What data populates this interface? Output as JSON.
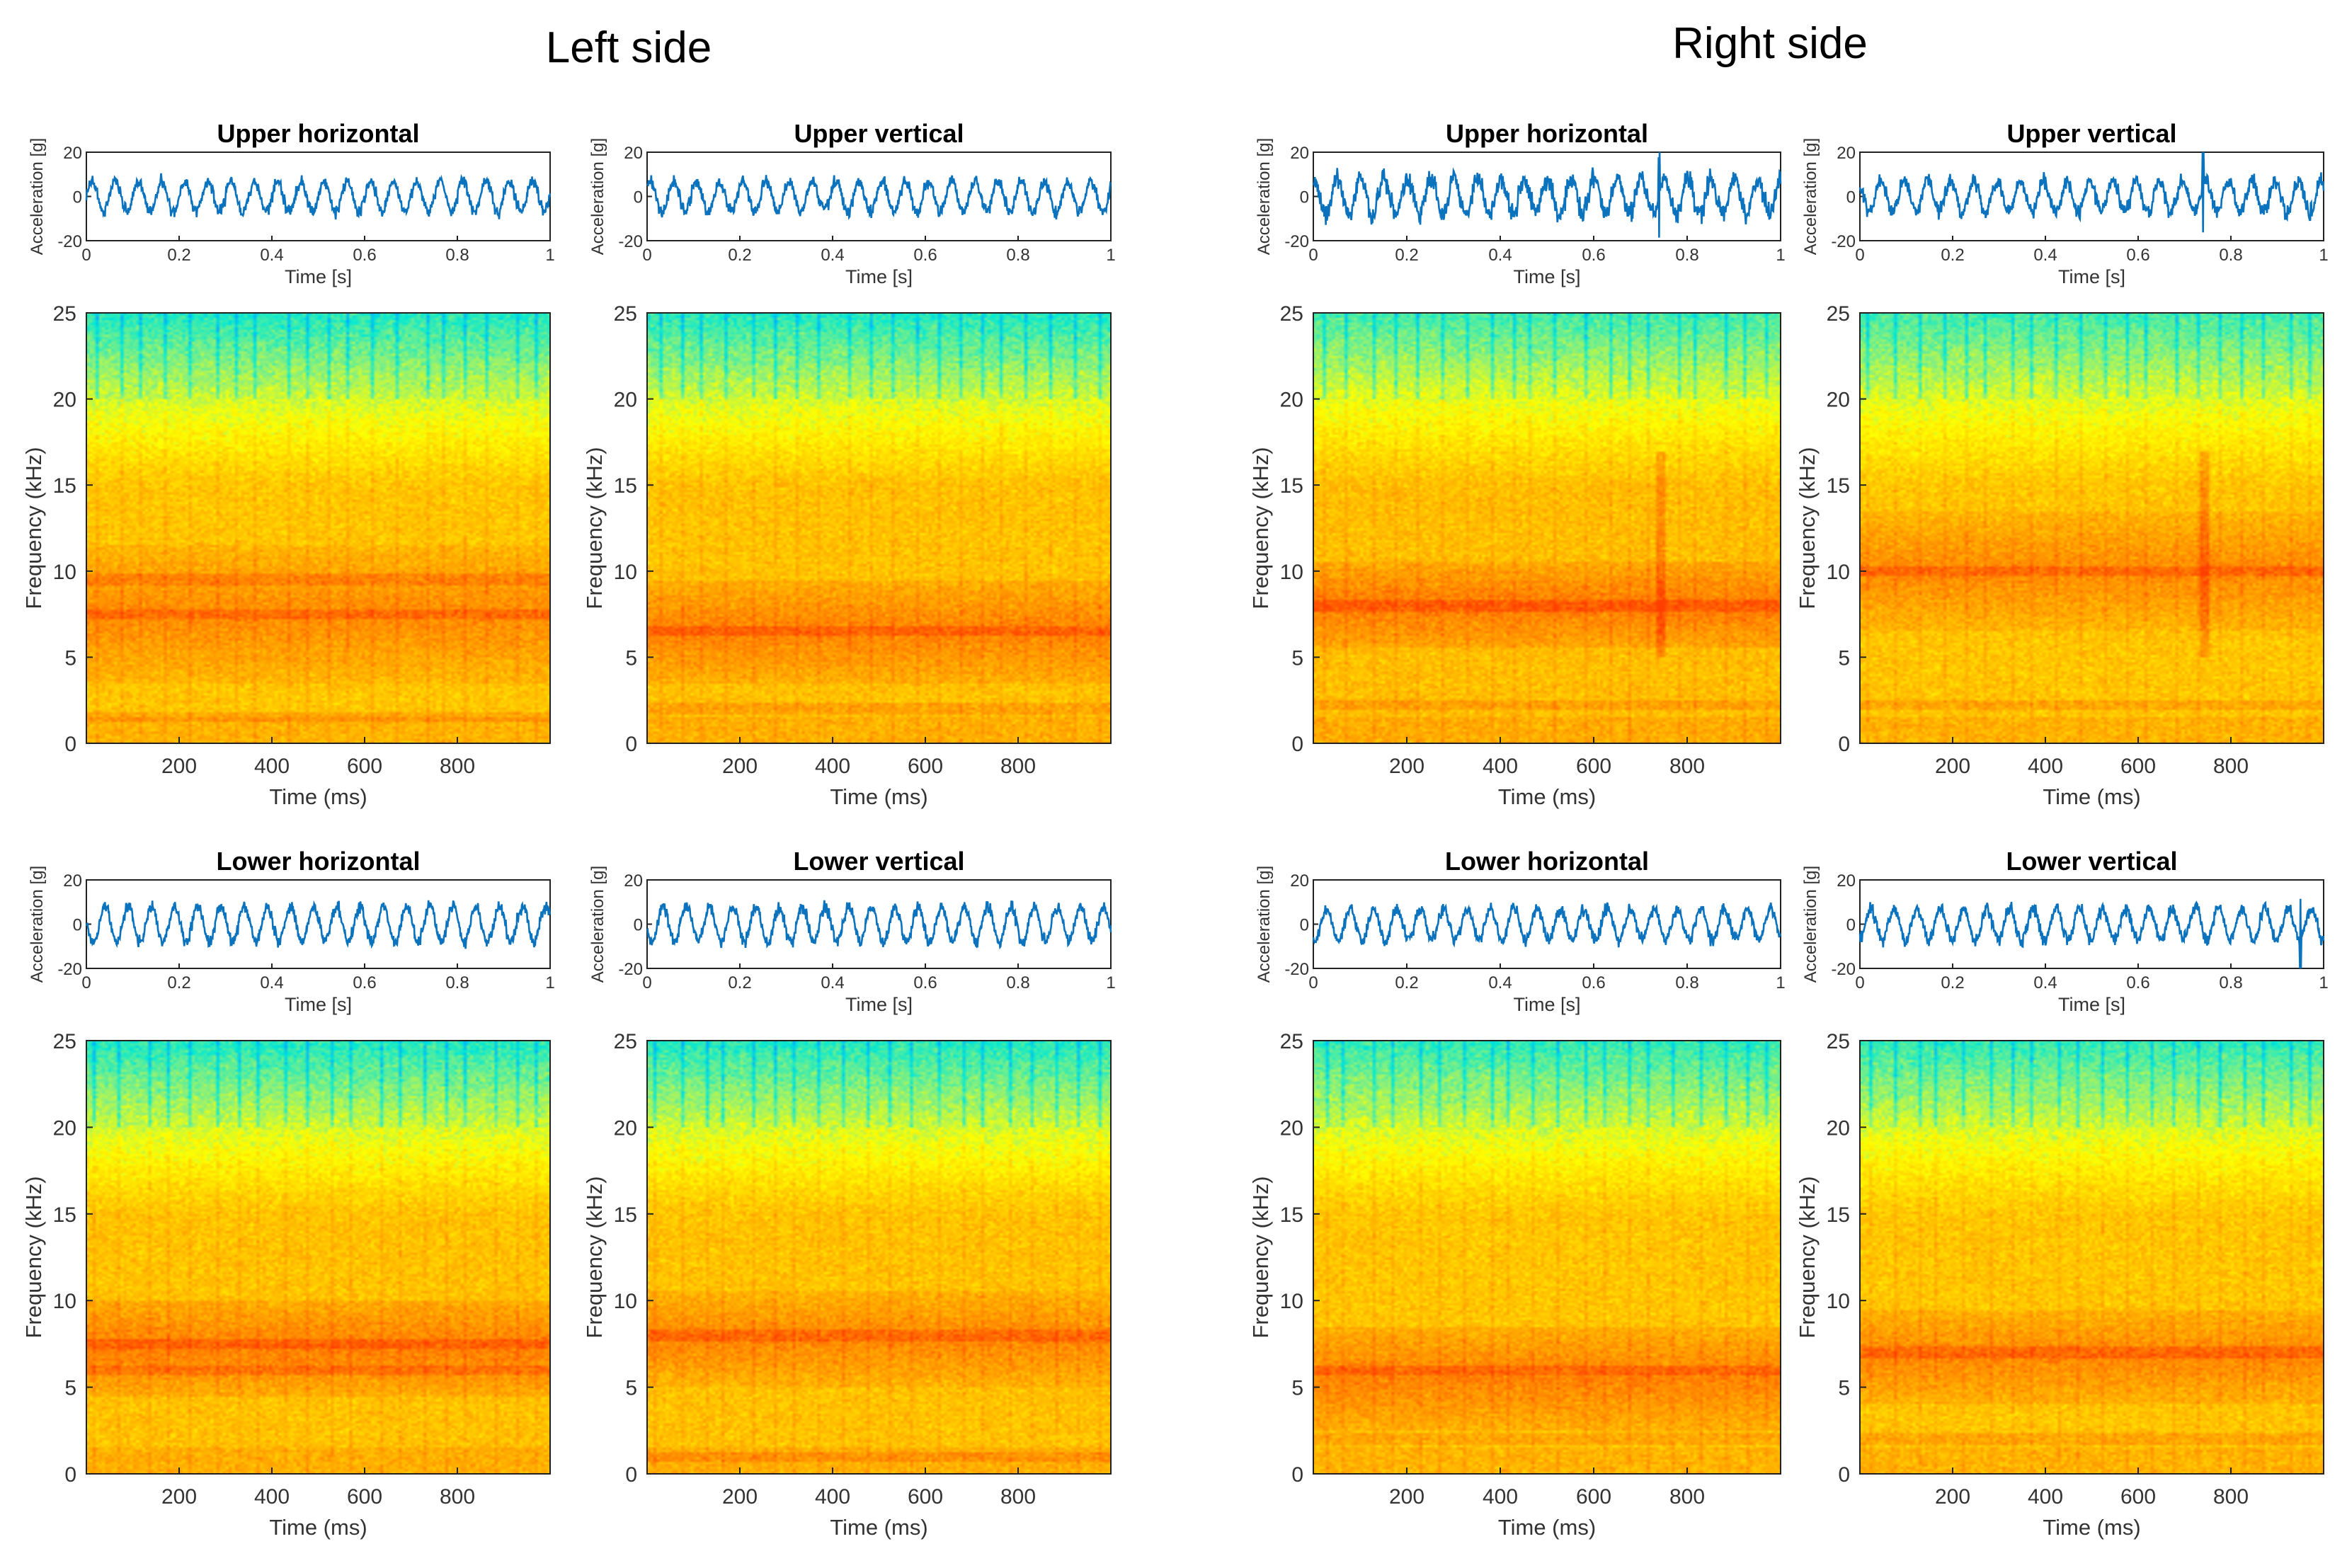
{
  "figure": {
    "side_titles": [
      "Left side",
      "Right side"
    ]
  },
  "colors": {
    "waveform": "#0b72bd",
    "colormap": [
      "#00a9ff",
      "#00e8d6",
      "#8af07c",
      "#ffff00",
      "#ffc400",
      "#ff8600",
      "#ff3f00"
    ]
  },
  "chart_data": [
    {
      "type": "line",
      "side": "Left side",
      "title": "Upper horizontal",
      "xlabel": "Time [s]",
      "ylabel": "Acceleration [g]",
      "xlim": [
        0,
        1
      ],
      "ylim": [
        -20,
        20
      ],
      "xticks": [
        "0",
        "0.2",
        "0.4",
        "0.6",
        "0.8",
        "1"
      ],
      "yticks": [
        "20",
        "0",
        "-20"
      ],
      "series": [
        {
          "signal": "sine+noise",
          "amplitude": 7,
          "cycles": 20,
          "noise": 2.5,
          "spike_at": null
        }
      ]
    },
    {
      "type": "heatmap",
      "side": "Left side",
      "title": "",
      "xlabel": "Time (ms)",
      "ylabel": "Frequency (kHz)",
      "xlim": [
        0,
        1000
      ],
      "ylim": [
        0,
        25
      ],
      "xticks": [
        "200",
        "400",
        "600",
        "800"
      ],
      "yticks": [
        "0",
        "5",
        "10",
        "15",
        "20",
        "25"
      ],
      "spectrum": {
        "peak_band_khz": [
          5,
          10
        ],
        "peak_level": 0.82,
        "background_level": 0.66,
        "top_level": 0.2,
        "line_khz": [
          9.5,
          7.5,
          1.5
        ],
        "column_stripes": 20,
        "transient_ms": null
      }
    },
    {
      "type": "line",
      "side": "Left side",
      "title": "Upper vertical",
      "xlabel": "Time [s]",
      "ylabel": "Acceleration [g]",
      "xlim": [
        0,
        1
      ],
      "ylim": [
        -20,
        20
      ],
      "xticks": [
        "0",
        "0.2",
        "0.4",
        "0.6",
        "0.8",
        "1"
      ],
      "yticks": [
        "20",
        "0",
        "-20"
      ],
      "series": [
        {
          "signal": "sine+noise",
          "amplitude": 7,
          "cycles": 20,
          "noise": 2.5,
          "spike_at": null
        }
      ]
    },
    {
      "type": "heatmap",
      "side": "Left side",
      "title": "",
      "xlabel": "Time (ms)",
      "ylabel": "Frequency (kHz)",
      "xlim": [
        0,
        1000
      ],
      "ylim": [
        0,
        25
      ],
      "xticks": [
        "200",
        "400",
        "600",
        "800"
      ],
      "yticks": [
        "0",
        "5",
        "10",
        "15",
        "20",
        "25"
      ],
      "spectrum": {
        "peak_band_khz": [
          5,
          8
        ],
        "peak_level": 0.84,
        "background_level": 0.67,
        "top_level": 0.2,
        "line_khz": [
          6.5,
          2
        ],
        "column_stripes": 20,
        "transient_ms": null
      }
    },
    {
      "type": "line",
      "side": "Right side",
      "title": "Upper horizontal",
      "xlabel": "Time [s]",
      "ylabel": "Acceleration [g]",
      "xlim": [
        0,
        1
      ],
      "ylim": [
        -20,
        20
      ],
      "xticks": [
        "0",
        "0.2",
        "0.4",
        "0.6",
        "0.8",
        "1"
      ],
      "yticks": [
        "20",
        "0",
        "-20"
      ],
      "series": [
        {
          "signal": "sine+noise",
          "amplitude": 8,
          "cycles": 20,
          "noise": 4,
          "spike_at": 0.74
        }
      ]
    },
    {
      "type": "heatmap",
      "side": "Right side",
      "title": "",
      "xlabel": "Time (ms)",
      "ylabel": "Frequency (kHz)",
      "xlim": [
        0,
        1000
      ],
      "ylim": [
        0,
        25
      ],
      "xticks": [
        "200",
        "400",
        "600",
        "800"
      ],
      "yticks": [
        "0",
        "5",
        "10",
        "15",
        "20",
        "25"
      ],
      "spectrum": {
        "peak_band_khz": [
          7,
          9
        ],
        "peak_level": 0.86,
        "background_level": 0.68,
        "top_level": 0.24,
        "line_khz": [
          8,
          2.2
        ],
        "column_stripes": 20,
        "transient_ms": 740
      }
    },
    {
      "type": "line",
      "side": "Right side",
      "title": "Upper vertical",
      "xlabel": "Time [s]",
      "ylabel": "Acceleration [g]",
      "xlim": [
        0,
        1
      ],
      "ylim": [
        -20,
        20
      ],
      "xticks": [
        "0",
        "0.2",
        "0.4",
        "0.6",
        "0.8",
        "1"
      ],
      "yticks": [
        "20",
        "0",
        "-20"
      ],
      "series": [
        {
          "signal": "sine+noise",
          "amplitude": 7,
          "cycles": 20,
          "noise": 3,
          "spike_at": 0.74
        }
      ]
    },
    {
      "type": "heatmap",
      "side": "Right side",
      "title": "",
      "xlabel": "Time (ms)",
      "ylabel": "Frequency (kHz)",
      "xlim": [
        0,
        1000
      ],
      "ylim": [
        0,
        25
      ],
      "xticks": [
        "200",
        "400",
        "600",
        "800"
      ],
      "yticks": [
        "0",
        "5",
        "10",
        "15",
        "20",
        "25"
      ],
      "spectrum": {
        "peak_band_khz": [
          8,
          12
        ],
        "peak_level": 0.82,
        "background_level": 0.66,
        "top_level": 0.24,
        "line_khz": [
          10,
          2.2
        ],
        "column_stripes": 20,
        "transient_ms": 740
      }
    },
    {
      "type": "line",
      "side": "Left side",
      "title": "Lower horizontal",
      "xlabel": "Time [s]",
      "ylabel": "Acceleration [g]",
      "xlim": [
        0,
        1
      ],
      "ylim": [
        -20,
        20
      ],
      "xticks": [
        "0",
        "0.2",
        "0.4",
        "0.6",
        "0.8",
        "1"
      ],
      "yticks": [
        "20",
        "0",
        "-20"
      ],
      "series": [
        {
          "signal": "sine+noise",
          "amplitude": 8,
          "cycles": 20,
          "noise": 2.5,
          "spike_at": null
        }
      ]
    },
    {
      "type": "heatmap",
      "side": "Left side",
      "title": "",
      "xlabel": "Time (ms)",
      "ylabel": "Frequency (kHz)",
      "xlim": [
        0,
        1000
      ],
      "ylim": [
        0,
        25
      ],
      "xticks": [
        "200",
        "400",
        "600",
        "800"
      ],
      "yticks": [
        "0",
        "5",
        "10",
        "15",
        "20",
        "25"
      ],
      "spectrum": {
        "peak_band_khz": [
          6,
          8.5
        ],
        "peak_level": 0.85,
        "background_level": 0.67,
        "top_level": 0.2,
        "line_khz": [
          7.5,
          6
        ],
        "column_stripes": 20,
        "transient_ms": null
      }
    },
    {
      "type": "line",
      "side": "Left side",
      "title": "Lower vertical",
      "xlabel": "Time [s]",
      "ylabel": "Acceleration [g]",
      "xlim": [
        0,
        1
      ],
      "ylim": [
        -20,
        20
      ],
      "xticks": [
        "0",
        "0.2",
        "0.4",
        "0.6",
        "0.8",
        "1"
      ],
      "yticks": [
        "20",
        "0",
        "-20"
      ],
      "series": [
        {
          "signal": "sine+noise",
          "amplitude": 8,
          "cycles": 20,
          "noise": 2.5,
          "spike_at": null
        }
      ]
    },
    {
      "type": "heatmap",
      "side": "Left side",
      "title": "",
      "xlabel": "Time (ms)",
      "ylabel": "Frequency (kHz)",
      "xlim": [
        0,
        1000
      ],
      "ylim": [
        0,
        25
      ],
      "xticks": [
        "200",
        "400",
        "600",
        "800"
      ],
      "yticks": [
        "0",
        "5",
        "10",
        "15",
        "20",
        "25"
      ],
      "spectrum": {
        "peak_band_khz": [
          6.5,
          9
        ],
        "peak_level": 0.83,
        "background_level": 0.67,
        "top_level": 0.2,
        "line_khz": [
          8,
          1
        ],
        "column_stripes": 20,
        "transient_ms": null
      }
    },
    {
      "type": "line",
      "side": "Right side",
      "title": "Lower horizontal",
      "xlabel": "Time [s]",
      "ylabel": "Acceleration [g]",
      "xlim": [
        0,
        1
      ],
      "ylim": [
        -20,
        20
      ],
      "xticks": [
        "0",
        "0.2",
        "0.4",
        "0.6",
        "0.8",
        "1"
      ],
      "yticks": [
        "20",
        "0",
        "-20"
      ],
      "series": [
        {
          "signal": "sine+noise",
          "amplitude": 7,
          "cycles": 20,
          "noise": 2.5,
          "spike_at": null
        }
      ]
    },
    {
      "type": "heatmap",
      "side": "Right side",
      "title": "",
      "xlabel": "Time (ms)",
      "ylabel": "Frequency (kHz)",
      "xlim": [
        0,
        1000
      ],
      "ylim": [
        0,
        25
      ],
      "xticks": [
        "200",
        "400",
        "600",
        "800"
      ],
      "yticks": [
        "0",
        "5",
        "10",
        "15",
        "20",
        "25"
      ],
      "spectrum": {
        "peak_band_khz": [
          4,
          7
        ],
        "peak_level": 0.84,
        "background_level": 0.66,
        "top_level": 0.22,
        "line_khz": [
          6,
          2
        ],
        "column_stripes": 20,
        "transient_ms": null
      }
    },
    {
      "type": "line",
      "side": "Right side",
      "title": "Lower vertical",
      "xlabel": "Time [s]",
      "ylabel": "Acceleration [g]",
      "xlim": [
        0,
        1
      ],
      "ylim": [
        -20,
        20
      ],
      "xticks": [
        "0",
        "0.2",
        "0.4",
        "0.6",
        "0.8",
        "1"
      ],
      "yticks": [
        "20",
        "0",
        "-20"
      ],
      "series": [
        {
          "signal": "sine+noise",
          "amplitude": 7,
          "cycles": 20,
          "noise": 2.5,
          "spike_at": 0.95
        }
      ]
    },
    {
      "type": "heatmap",
      "side": "Right side",
      "title": "",
      "xlabel": "Time (ms)",
      "ylabel": "Frequency (kHz)",
      "xlim": [
        0,
        1000
      ],
      "ylim": [
        0,
        25
      ],
      "xticks": [
        "200",
        "400",
        "600",
        "800"
      ],
      "yticks": [
        "0",
        "5",
        "10",
        "15",
        "20",
        "25"
      ],
      "spectrum": {
        "peak_band_khz": [
          5.5,
          8
        ],
        "peak_level": 0.83,
        "background_level": 0.66,
        "top_level": 0.22,
        "line_khz": [
          7,
          2
        ],
        "column_stripes": 20,
        "transient_ms": null
      }
    }
  ]
}
